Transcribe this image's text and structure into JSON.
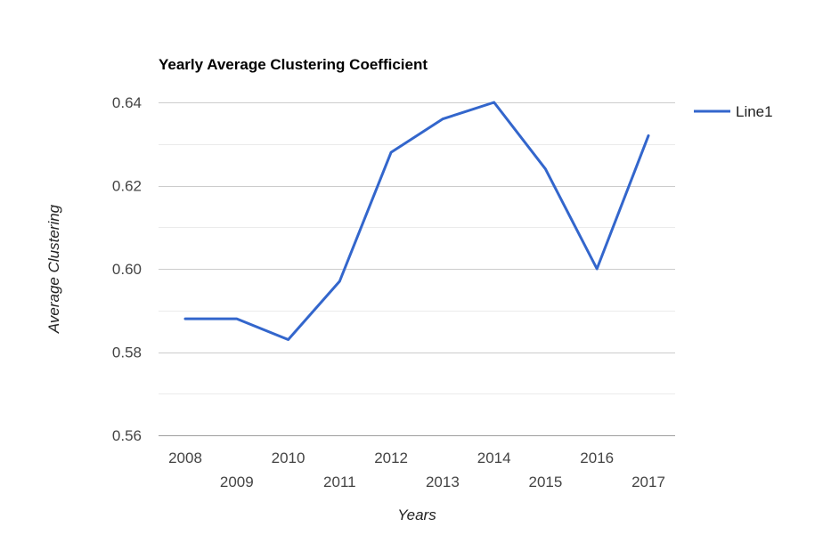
{
  "chart_data": {
    "type": "line",
    "title": "Yearly Average Clustering Coefficient",
    "xlabel": "Years",
    "ylabel": "Average Clustering",
    "x": [
      "2008",
      "2009",
      "2010",
      "2011",
      "2012",
      "2013",
      "2014",
      "2015",
      "2016",
      "2017"
    ],
    "series": [
      {
        "name": "Line1",
        "color": "#3366cc",
        "values": [
          0.588,
          0.588,
          0.583,
          0.597,
          0.628,
          0.636,
          0.64,
          0.624,
          0.6,
          0.632
        ]
      }
    ],
    "ylim": [
      0.56,
      0.64
    ],
    "yticks": [
      "0.56",
      "0.58",
      "0.60",
      "0.62",
      "0.64"
    ],
    "grid": true,
    "legend_position": "right"
  }
}
